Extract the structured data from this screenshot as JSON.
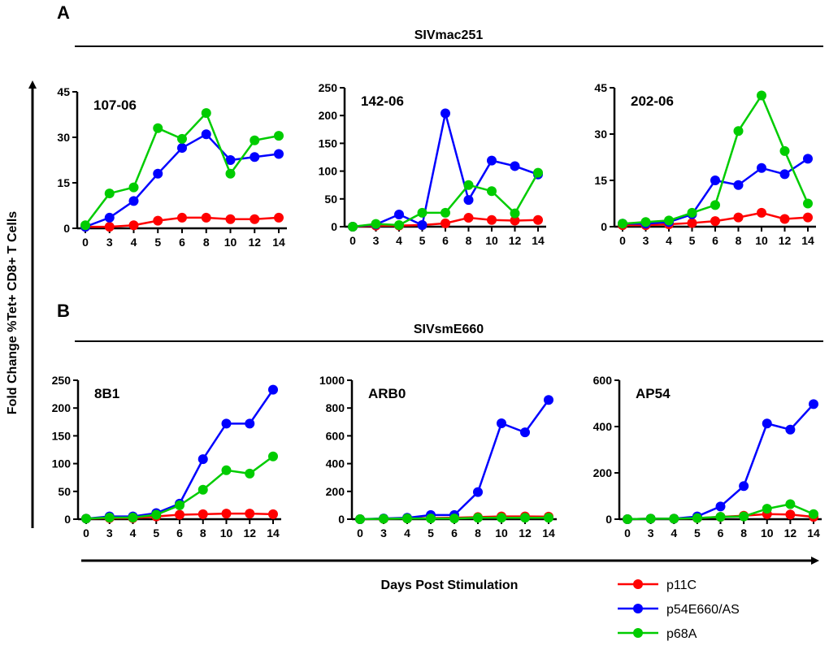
{
  "panels": [
    {
      "letter": "A",
      "strain": "SIVmac251"
    },
    {
      "letter": "B",
      "strain": "SIVsmE660"
    }
  ],
  "y_axis_title": "Fold Change %Tet+ CD8+ T Cells",
  "x_axis_title": "Days Post Stimulation",
  "legend": [
    {
      "name": "p11C",
      "color": "#ff0000"
    },
    {
      "name": "p54E660/AS",
      "color": "#0000ff"
    },
    {
      "name": "p68A",
      "color": "#00cc00"
    }
  ],
  "chart_data": [
    {
      "type": "line",
      "title": "107-06",
      "panel": "A",
      "categories": [
        "0",
        "3",
        "4",
        "5",
        "6",
        "8",
        "10",
        "12",
        "14"
      ],
      "ylim": [
        0,
        45
      ],
      "yticks": [
        0,
        15,
        30,
        45
      ],
      "series": [
        {
          "name": "p11C",
          "values": [
            0.5,
            0.5,
            1,
            2.5,
            3.5,
            3.5,
            3,
            3,
            3.5
          ]
        },
        {
          "name": "p54E660/AS",
          "values": [
            0.5,
            3.5,
            9,
            18,
            26.5,
            31,
            22.5,
            23.5,
            24.5
          ]
        },
        {
          "name": "p68A",
          "values": [
            1,
            11.5,
            13.5,
            33,
            29.5,
            38,
            18,
            29,
            30.5
          ]
        }
      ]
    },
    {
      "type": "line",
      "title": "142-06",
      "panel": "A",
      "categories": [
        "0",
        "3",
        "4",
        "5",
        "6",
        "8",
        "10",
        "12",
        "14"
      ],
      "ylim": [
        0,
        250
      ],
      "yticks": [
        0,
        50,
        100,
        150,
        200,
        250
      ],
      "series": [
        {
          "name": "p11C",
          "values": [
            0,
            2,
            2,
            3,
            6,
            16,
            12,
            11,
            12
          ]
        },
        {
          "name": "p54E660/AS",
          "values": [
            0,
            4,
            22,
            3,
            204,
            48,
            119,
            109,
            94
          ]
        },
        {
          "name": "p68A",
          "values": [
            0,
            5,
            3,
            25,
            25,
            75,
            64,
            24,
            97
          ]
        }
      ]
    },
    {
      "type": "line",
      "title": "202-06",
      "panel": "A",
      "categories": [
        "0",
        "3",
        "4",
        "5",
        "6",
        "8",
        "10",
        "12",
        "14"
      ],
      "ylim": [
        0,
        45
      ],
      "yticks": [
        0,
        15,
        30,
        45
      ],
      "series": [
        {
          "name": "p11C",
          "values": [
            0.5,
            0.5,
            0.8,
            1.2,
            1.8,
            3,
            4.5,
            2.5,
            3
          ]
        },
        {
          "name": "p54E660/AS",
          "values": [
            1,
            1,
            1.5,
            4,
            15,
            13.5,
            19,
            17,
            22
          ]
        },
        {
          "name": "p68A",
          "values": [
            1,
            1.5,
            2,
            4.5,
            7,
            31,
            42.5,
            24.5,
            7.5
          ]
        }
      ]
    },
    {
      "type": "line",
      "title": "8B1",
      "panel": "B",
      "categories": [
        "0",
        "3",
        "4",
        "5",
        "6",
        "8",
        "10",
        "12",
        "14"
      ],
      "ylim": [
        0,
        250
      ],
      "yticks": [
        0,
        50,
        100,
        150,
        200,
        250
      ],
      "series": [
        {
          "name": "p11C",
          "values": [
            1,
            2,
            2,
            5,
            8,
            9,
            10,
            10,
            9
          ]
        },
        {
          "name": "p54E660/AS",
          "values": [
            1,
            5,
            5,
            11,
            28,
            108,
            172,
            172,
            233
          ]
        },
        {
          "name": "p68A",
          "values": [
            1,
            3,
            3,
            8,
            25,
            53,
            88,
            82,
            113
          ]
        }
      ]
    },
    {
      "type": "line",
      "title": "ARB0",
      "panel": "B",
      "categories": [
        "0",
        "3",
        "4",
        "5",
        "6",
        "8",
        "10",
        "12",
        "14"
      ],
      "ylim": [
        0,
        1000
      ],
      "yticks": [
        0,
        200,
        400,
        600,
        800,
        1000
      ],
      "series": [
        {
          "name": "p11C",
          "values": [
            0,
            3,
            5,
            8,
            10,
            15,
            20,
            20,
            18
          ]
        },
        {
          "name": "p54E660/AS",
          "values": [
            0,
            5,
            10,
            30,
            30,
            195,
            690,
            625,
            858
          ]
        },
        {
          "name": "p68A",
          "values": [
            0,
            3,
            5,
            5,
            5,
            10,
            10,
            10,
            10
          ]
        }
      ]
    },
    {
      "type": "line",
      "title": "AP54",
      "panel": "B",
      "categories": [
        "0",
        "3",
        "4",
        "5",
        "6",
        "8",
        "10",
        "12",
        "14"
      ],
      "ylim": [
        0,
        600
      ],
      "yticks": [
        0,
        200,
        400,
        600
      ],
      "series": [
        {
          "name": "p11C",
          "values": [
            0,
            2,
            2,
            5,
            10,
            15,
            22,
            20,
            10
          ]
        },
        {
          "name": "p54E660/AS",
          "values": [
            0,
            2,
            2,
            12,
            55,
            143,
            413,
            387,
            497
          ]
        },
        {
          "name": "p68A",
          "values": [
            0,
            2,
            2,
            5,
            10,
            12,
            45,
            65,
            22
          ]
        }
      ]
    }
  ]
}
